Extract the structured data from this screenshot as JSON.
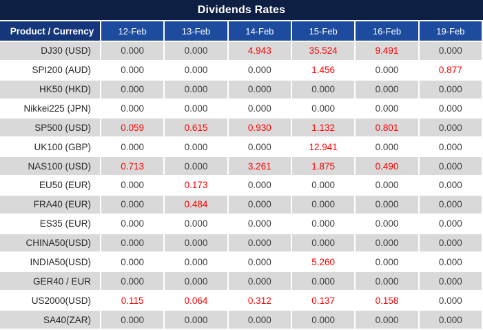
{
  "title": "Dividends Rates",
  "colors": {
    "title_bg": "#0e1f44",
    "product_header_bg": "#16367b",
    "date_header_bg": "#1d4c9f",
    "alt_row_bg": "#d9d9d9",
    "zero_text": "#3d3d3d",
    "nonzero_text": "#ff0000",
    "header_text": "#ffffff"
  },
  "table": {
    "product_header": "Product / Currency",
    "columns": [
      "12-Feb",
      "13-Feb",
      "14-Feb",
      "15-Feb",
      "16-Feb",
      "19-Feb"
    ],
    "zero_value": "0.000",
    "rows": [
      {
        "product": "DJ30 (USD)",
        "values": [
          "0.000",
          "0.000",
          "4.943",
          "35.524",
          "9.491",
          "0.000"
        ]
      },
      {
        "product": "SPI200 (AUD)",
        "values": [
          "0.000",
          "0.000",
          "0.000",
          "1.456",
          "0.000",
          "0.877"
        ]
      },
      {
        "product": "HK50 (HKD)",
        "values": [
          "0.000",
          "0.000",
          "0.000",
          "0.000",
          "0.000",
          "0.000"
        ]
      },
      {
        "product": "Nikkei225 (JPN)",
        "values": [
          "0.000",
          "0.000",
          "0.000",
          "0.000",
          "0.000",
          "0.000"
        ]
      },
      {
        "product": "SP500 (USD)",
        "values": [
          "0.059",
          "0.615",
          "0.930",
          "1.132",
          "0.801",
          "0.000"
        ]
      },
      {
        "product": "UK100 (GBP)",
        "values": [
          "0.000",
          "0.000",
          "0.000",
          "12.941",
          "0.000",
          "0.000"
        ]
      },
      {
        "product": "NAS100 (USD)",
        "values": [
          "0.713",
          "0.000",
          "3.261",
          "1.875",
          "0.490",
          "0.000"
        ]
      },
      {
        "product": "EU50 (EUR)",
        "values": [
          "0.000",
          "0.173",
          "0.000",
          "0.000",
          "0.000",
          "0.000"
        ]
      },
      {
        "product": "FRA40 (EUR)",
        "values": [
          "0.000",
          "0.484",
          "0.000",
          "0.000",
          "0.000",
          "0.000"
        ]
      },
      {
        "product": "ES35 (EUR)",
        "values": [
          "0.000",
          "0.000",
          "0.000",
          "0.000",
          "0.000",
          "0.000"
        ]
      },
      {
        "product": "CHINA50(USD)",
        "values": [
          "0.000",
          "0.000",
          "0.000",
          "0.000",
          "0.000",
          "0.000"
        ]
      },
      {
        "product": "INDIA50(USD)",
        "values": [
          "0.000",
          "0.000",
          "0.000",
          "5.260",
          "0.000",
          "0.000"
        ]
      },
      {
        "product": "GER40 / EUR",
        "values": [
          "0.000",
          "0.000",
          "0.000",
          "0.000",
          "0.000",
          "0.000"
        ]
      },
      {
        "product": "US2000(USD)",
        "values": [
          "0.115",
          "0.064",
          "0.312",
          "0.137",
          "0.158",
          "0.000"
        ]
      },
      {
        "product": "SA40(ZAR)",
        "values": [
          "0.000",
          "0.000",
          "0.000",
          "0.000",
          "0.000",
          "0.000"
        ]
      }
    ]
  }
}
